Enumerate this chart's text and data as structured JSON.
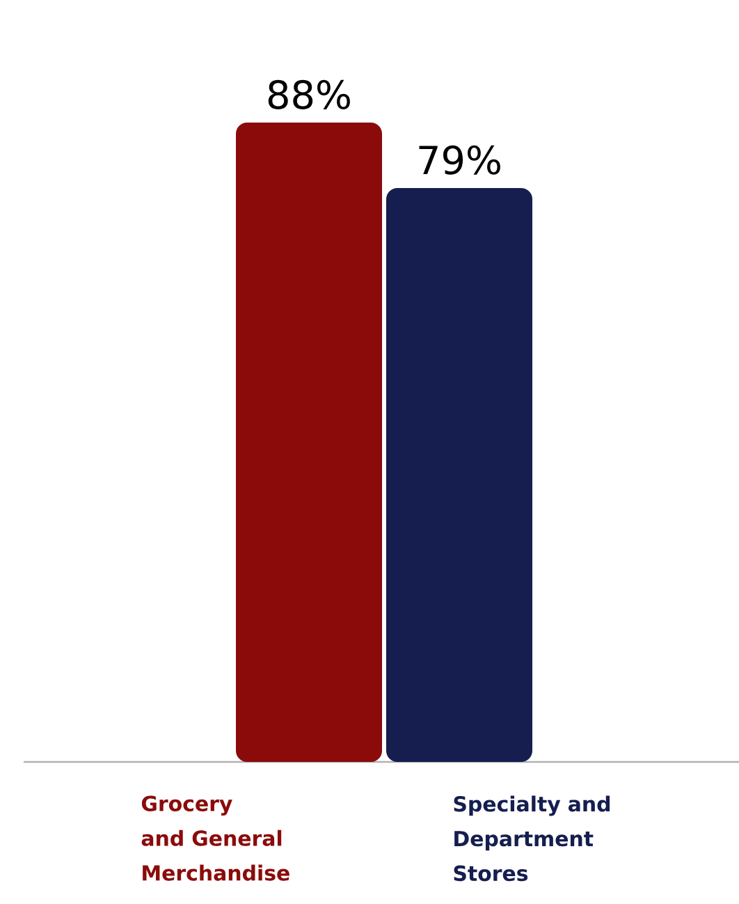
{
  "chart_data": {
    "type": "bar",
    "categories": [
      "Grocery and General Merchandise",
      "Specialty and Department Stores"
    ],
    "values": [
      88,
      79
    ],
    "colors": [
      "#8b0b0b",
      "#151e4f"
    ],
    "value_labels": [
      "88%",
      "79%"
    ]
  }
}
